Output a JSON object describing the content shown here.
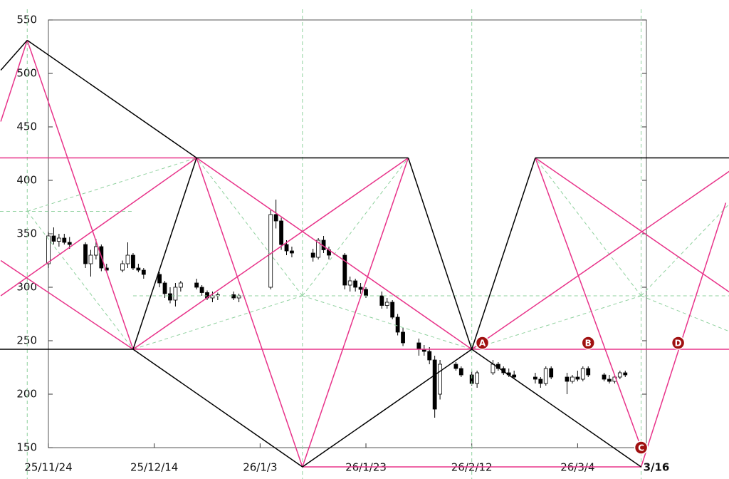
{
  "chart_data": {
    "type": "candlestick",
    "x": [
      "25/11/24",
      "25/11/25",
      "25/11/26",
      "25/11/27",
      "25/11/28",
      "25/12/1",
      "25/12/2",
      "25/12/3",
      "25/12/4",
      "25/12/5",
      "25/12/8",
      "25/12/9",
      "25/12/10",
      "25/12/11",
      "25/12/12",
      "25/12/15",
      "25/12/16",
      "25/12/17",
      "25/12/18",
      "25/12/19",
      "25/12/22",
      "25/12/23",
      "25/12/24",
      "25/12/25",
      "25/12/26",
      "25/12/29",
      "25/12/30",
      "26/1/5",
      "26/1/6",
      "26/1/7",
      "26/1/8",
      "26/1/9",
      "26/1/13",
      "26/1/14",
      "26/1/15",
      "26/1/16",
      "26/1/19",
      "26/1/20",
      "26/1/21",
      "26/1/22",
      "26/1/23",
      "26/1/26",
      "26/1/27",
      "26/1/28",
      "26/1/29",
      "26/1/30",
      "26/2/2",
      "26/2/3",
      "26/2/4",
      "26/2/5",
      "26/2/6",
      "26/2/9",
      "26/2/10",
      "26/2/12",
      "26/2/13",
      "26/2/16",
      "26/2/17",
      "26/2/18",
      "26/2/19",
      "26/2/20",
      "26/2/24",
      "26/2/25",
      "26/2/26",
      "26/2/27",
      "26/3/2",
      "26/3/3",
      "26/3/4",
      "26/3/5",
      "26/3/6",
      "26/3/9",
      "26/3/10",
      "26/3/11",
      "26/3/12",
      "26/3/13"
    ],
    "open": [
      322,
      348,
      343,
      346,
      342,
      340,
      322,
      330,
      338,
      318,
      316,
      322,
      330,
      318,
      316,
      312,
      304,
      294,
      288,
      300,
      304,
      300,
      295,
      290,
      292,
      293,
      290,
      300,
      368,
      362,
      340,
      334,
      332,
      328,
      344,
      335,
      330,
      302,
      306,
      300,
      298,
      292,
      283,
      286,
      272,
      258,
      248,
      242,
      240,
      232,
      200,
      228,
      224,
      218,
      210,
      220,
      228,
      224,
      220,
      218,
      216,
      214,
      210,
      224,
      216,
      212,
      216,
      214,
      224,
      218,
      214,
      212,
      216,
      220
    ],
    "high": [
      352,
      356,
      350,
      350,
      347,
      342,
      335,
      345,
      340,
      322,
      325,
      342,
      332,
      322,
      318,
      314,
      306,
      300,
      304,
      306,
      308,
      302,
      297,
      296,
      295,
      296,
      294,
      372,
      382,
      365,
      344,
      338,
      336,
      346,
      348,
      338,
      332,
      310,
      308,
      304,
      300,
      296,
      290,
      288,
      275,
      262,
      252,
      246,
      244,
      236,
      232,
      230,
      226,
      222,
      222,
      232,
      230,
      226,
      224,
      222,
      220,
      216,
      226,
      226,
      220,
      218,
      222,
      226,
      226,
      220,
      218,
      218,
      222,
      222
    ],
    "low": [
      318,
      340,
      338,
      340,
      336,
      318,
      310,
      326,
      315,
      314,
      314,
      318,
      316,
      314,
      308,
      300,
      290,
      285,
      282,
      296,
      298,
      292,
      288,
      286,
      288,
      288,
      286,
      298,
      355,
      335,
      330,
      328,
      324,
      326,
      332,
      326,
      298,
      296,
      296,
      294,
      290,
      280,
      280,
      270,
      255,
      245,
      236,
      236,
      228,
      178,
      195,
      222,
      216,
      208,
      206,
      218,
      222,
      218,
      216,
      214,
      210,
      206,
      208,
      214,
      200,
      210,
      212,
      212,
      216,
      212,
      210,
      210,
      214,
      216
    ],
    "close": [
      348,
      343,
      346,
      342,
      340,
      322,
      330,
      338,
      318,
      316,
      322,
      330,
      318,
      316,
      312,
      304,
      294,
      288,
      300,
      304,
      300,
      295,
      290,
      292,
      293,
      290,
      292,
      368,
      362,
      340,
      334,
      332,
      328,
      344,
      335,
      330,
      302,
      306,
      300,
      298,
      292,
      283,
      286,
      272,
      258,
      248,
      242,
      240,
      232,
      186,
      228,
      224,
      218,
      210,
      220,
      228,
      224,
      220,
      218,
      216,
      214,
      210,
      224,
      216,
      212,
      216,
      214,
      224,
      218,
      214,
      212,
      216,
      220,
      218
    ],
    "up_color": "#ffffff",
    "down_color": "#000000",
    "wick_color": "#000000",
    "xlim": [
      "25/11/24",
      "26/3/17"
    ],
    "ylim": [
      150,
      550
    ],
    "xticks": [
      "25/11/24",
      "25/12/14",
      "26/1/3",
      "26/1/23",
      "26/2/12",
      "26/3/4"
    ],
    "yticks": [
      150,
      200,
      250,
      300,
      350,
      400,
      450,
      500,
      550
    ],
    "overlays": [
      {
        "color": "#8fd19e",
        "width": 1,
        "dashed": true,
        "points": [
          [
            "25/11/20",
            560
          ],
          [
            "25/11/20",
            120
          ]
        ]
      },
      {
        "color": "#8fd19e",
        "width": 1,
        "dashed": true,
        "points": [
          [
            "26/1/11",
            560
          ],
          [
            "26/1/11",
            120
          ]
        ]
      },
      {
        "color": "#8fd19e",
        "width": 1,
        "dashed": true,
        "points": [
          [
            "26/2/12",
            560
          ],
          [
            "26/2/12",
            120
          ]
        ]
      },
      {
        "color": "#8fd19e",
        "width": 1,
        "dashed": true,
        "points": [
          [
            "26/3/16",
            560
          ],
          [
            "26/3/16",
            120
          ]
        ]
      },
      {
        "color": "#8fd19e",
        "width": 1,
        "dashed": true,
        "points": [
          [
            "25/11/10",
            371
          ],
          [
            "25/12/10",
            371
          ]
        ]
      },
      {
        "color": "#8fd19e",
        "width": 1,
        "dashed": true,
        "points": [
          [
            "25/12/10",
            292
          ],
          [
            "26/2/12",
            292
          ]
        ]
      },
      {
        "color": "#8fd19e",
        "width": 1,
        "dashed": true,
        "points": [
          [
            "26/2/12",
            292
          ],
          [
            "26/4/10",
            292
          ]
        ]
      },
      {
        "color": "#8fd19e",
        "width": 1,
        "dashed": true,
        "points": [
          [
            "26/1/11",
            292
          ],
          [
            "25/12/22",
            421
          ]
        ]
      },
      {
        "color": "#8fd19e",
        "width": 1,
        "dashed": true,
        "points": [
          [
            "26/1/11",
            292
          ],
          [
            "26/1/31",
            421
          ]
        ]
      },
      {
        "color": "#8fd19e",
        "width": 1,
        "dashed": true,
        "points": [
          [
            "26/1/11",
            292
          ],
          [
            "25/12/10",
            242
          ]
        ]
      },
      {
        "color": "#8fd19e",
        "width": 1,
        "dashed": true,
        "points": [
          [
            "26/1/11",
            292
          ],
          [
            "26/2/12",
            242
          ]
        ]
      },
      {
        "color": "#8fd19e",
        "width": 1,
        "dashed": true,
        "points": [
          [
            "25/11/20",
            371
          ],
          [
            "25/12/22",
            421
          ]
        ]
      },
      {
        "color": "#8fd19e",
        "width": 1,
        "dashed": true,
        "points": [
          [
            "25/11/20",
            371
          ],
          [
            "25/12/10",
            242
          ]
        ]
      },
      {
        "color": "#8fd19e",
        "width": 1,
        "dashed": true,
        "points": [
          [
            "26/3/16",
            292
          ],
          [
            "26/2/24",
            421
          ]
        ]
      },
      {
        "color": "#8fd19e",
        "width": 1,
        "dashed": true,
        "points": [
          [
            "26/3/16",
            292
          ],
          [
            "26/2/12",
            242
          ]
        ]
      },
      {
        "color": "#8fd19e",
        "width": 1,
        "dashed": true,
        "points": [
          [
            "26/3/16",
            292
          ],
          [
            "26/4/10",
            421
          ]
        ]
      },
      {
        "color": "#8fd19e",
        "width": 1,
        "dashed": true,
        "points": [
          [
            "26/3/16",
            292
          ],
          [
            "26/4/10",
            242
          ]
        ]
      },
      {
        "color": "#e8338a",
        "width": 1.5,
        "points": [
          [
            "25/11/15",
            455
          ],
          [
            "25/11/20",
            531
          ]
        ]
      },
      {
        "color": "#e8338a",
        "width": 1.5,
        "points": [
          [
            "25/11/20",
            531
          ],
          [
            "25/12/10",
            242
          ]
        ]
      },
      {
        "color": "#e8338a",
        "width": 1.5,
        "points": [
          [
            "25/11/15",
            292
          ],
          [
            "25/12/22",
            421
          ]
        ]
      },
      {
        "color": "#e8338a",
        "width": 1.5,
        "points": [
          [
            "25/11/15",
            325
          ],
          [
            "25/12/10",
            242
          ]
        ]
      },
      {
        "color": "#e8338a",
        "width": 1.5,
        "points": [
          [
            "25/11/10",
            421
          ],
          [
            "25/12/22",
            421
          ]
        ]
      },
      {
        "color": "#e8338a",
        "width": 1.5,
        "points": [
          [
            "25/12/22",
            421
          ],
          [
            "26/1/11",
            132
          ]
        ]
      },
      {
        "color": "#e8338a",
        "width": 1.5,
        "points": [
          [
            "25/12/22",
            421
          ],
          [
            "26/2/12",
            242
          ]
        ]
      },
      {
        "color": "#e8338a",
        "width": 1.5,
        "points": [
          [
            "25/12/10",
            242
          ],
          [
            "26/1/31",
            421
          ]
        ]
      },
      {
        "color": "#e8338a",
        "width": 1.5,
        "points": [
          [
            "26/1/31",
            421
          ],
          [
            "26/1/11",
            132
          ]
        ]
      },
      {
        "color": "#e8338a",
        "width": 1.5,
        "points": [
          [
            "25/12/10",
            242
          ],
          [
            "26/4/10",
            242
          ]
        ]
      },
      {
        "color": "#e8338a",
        "width": 1.5,
        "points": [
          [
            "26/1/11",
            132
          ],
          [
            "26/3/16",
            132
          ]
        ]
      },
      {
        "color": "#e8338a",
        "width": 1.5,
        "points": [
          [
            "26/2/24",
            421
          ],
          [
            "26/3/16",
            150
          ]
        ]
      },
      {
        "color": "#e8338a",
        "width": 1.5,
        "points": [
          [
            "26/2/24",
            421
          ],
          [
            "26/4/10",
            267
          ]
        ]
      },
      {
        "color": "#e8338a",
        "width": 1.5,
        "points": [
          [
            "26/2/12",
            242
          ],
          [
            "26/4/10",
            437
          ]
        ]
      },
      {
        "color": "#e8338a",
        "width": 1.5,
        "points": [
          [
            "26/3/16",
            132
          ],
          [
            "26/4/1",
            379
          ]
        ]
      },
      {
        "color": "#000000",
        "width": 1.5,
        "points": [
          [
            "25/11/15",
            503
          ],
          [
            "25/11/20",
            531
          ]
        ]
      },
      {
        "color": "#000000",
        "width": 1.5,
        "points": [
          [
            "25/11/20",
            531
          ],
          [
            "25/12/22",
            421
          ]
        ]
      },
      {
        "color": "#000000",
        "width": 1.5,
        "points": [
          [
            "25/12/10",
            242
          ],
          [
            "25/12/22",
            421
          ]
        ]
      },
      {
        "color": "#000000",
        "width": 1.5,
        "points": [
          [
            "25/12/22",
            421
          ],
          [
            "26/1/31",
            421
          ]
        ]
      },
      {
        "color": "#000000",
        "width": 1.5,
        "points": [
          [
            "26/1/31",
            421
          ],
          [
            "26/2/12",
            242
          ]
        ]
      },
      {
        "color": "#000000",
        "width": 1.5,
        "points": [
          [
            "26/2/12",
            242
          ],
          [
            "26/2/24",
            421
          ]
        ]
      },
      {
        "color": "#000000",
        "width": 1.5,
        "points": [
          [
            "26/2/24",
            421
          ],
          [
            "26/4/10",
            421
          ]
        ]
      },
      {
        "color": "#000000",
        "width": 1.5,
        "points": [
          [
            "25/11/10",
            242
          ],
          [
            "25/12/10",
            242
          ]
        ]
      },
      {
        "color": "#000000",
        "width": 1.5,
        "points": [
          [
            "25/12/10",
            242
          ],
          [
            "26/1/11",
            132
          ]
        ]
      },
      {
        "color": "#000000",
        "width": 1.5,
        "points": [
          [
            "26/1/11",
            132
          ],
          [
            "26/2/12",
            242
          ]
        ]
      },
      {
        "color": "#000000",
        "width": 1.5,
        "points": [
          [
            "26/2/12",
            242
          ],
          [
            "26/3/16",
            132
          ]
        ]
      }
    ],
    "markers": [
      {
        "text": "A",
        "x": "26/2/14",
        "y": 248,
        "color": "#a01010"
      },
      {
        "text": "B",
        "x": "26/3/6",
        "y": 248,
        "color": "#a01010"
      },
      {
        "text": "C",
        "x": "26/3/16",
        "y": 150,
        "color": "#a01010"
      },
      {
        "text": "D",
        "x": "26/3/23",
        "y": 248,
        "color": "#a01010"
      }
    ],
    "annotations": [
      {
        "text": "3/16",
        "x": "26/3/16",
        "y": 150
      }
    ]
  }
}
